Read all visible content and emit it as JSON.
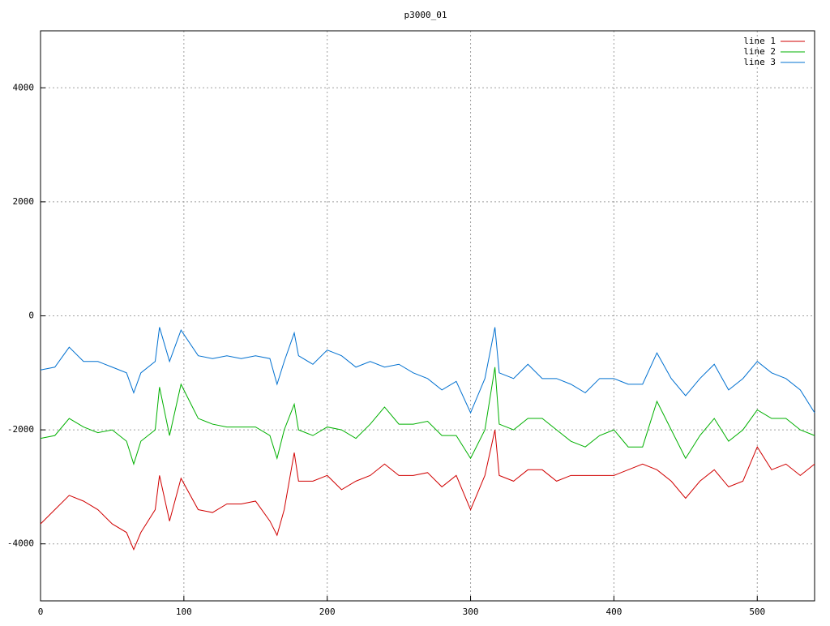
{
  "chart_data": {
    "type": "line",
    "title": "p3000_01",
    "x": [
      0,
      10,
      20,
      30,
      40,
      50,
      60,
      65,
      70,
      80,
      83,
      90,
      98,
      110,
      120,
      130,
      140,
      150,
      160,
      165,
      170,
      177,
      180,
      190,
      200,
      210,
      220,
      230,
      240,
      250,
      260,
      270,
      280,
      290,
      300,
      310,
      317,
      320,
      330,
      340,
      350,
      360,
      370,
      380,
      390,
      400,
      410,
      420,
      430,
      440,
      450,
      460,
      470,
      480,
      490,
      500,
      510,
      520,
      530,
      540
    ],
    "series": [
      {
        "name": "line 1",
        "color": "#d00000",
        "values": [
          -3650,
          -3400,
          -3150,
          -3250,
          -3400,
          -3650,
          -3800,
          -4100,
          -3800,
          -3400,
          -2800,
          -3600,
          -2850,
          -3400,
          -3450,
          -3300,
          -3300,
          -3250,
          -3600,
          -3850,
          -3400,
          -2400,
          -2900,
          -2900,
          -2800,
          -3050,
          -2900,
          -2800,
          -2600,
          -2800,
          -2800,
          -2750,
          -3000,
          -2800,
          -3400,
          -2800,
          -2000,
          -2800,
          -2900,
          -2700,
          -2700,
          -2900,
          -2800,
          -2800,
          -2800,
          -2800,
          -2700,
          -2600,
          -2700,
          -2900,
          -3200,
          -2900,
          -2700,
          -3000,
          -2900,
          -2300,
          -2700,
          -2600,
          -2800,
          -2600
        ]
      },
      {
        "name": "line 2",
        "color": "#00b000",
        "values": [
          -2150,
          -2100,
          -1800,
          -1950,
          -2050,
          -2000,
          -2200,
          -2600,
          -2200,
          -2000,
          -1250,
          -2100,
          -1200,
          -1800,
          -1900,
          -1950,
          -1950,
          -1950,
          -2100,
          -2500,
          -2000,
          -1550,
          -2000,
          -2100,
          -1950,
          -2000,
          -2150,
          -1900,
          -1600,
          -1900,
          -1900,
          -1850,
          -2100,
          -2100,
          -2500,
          -2000,
          -900,
          -1900,
          -2000,
          -1800,
          -1800,
          -2000,
          -2200,
          -2300,
          -2100,
          -2000,
          -2300,
          -2300,
          -1500,
          -2000,
          -2500,
          -2100,
          -1800,
          -2200,
          -2000,
          -1650,
          -1800,
          -1800,
          -2000,
          -2100
        ]
      },
      {
        "name": "line 3",
        "color": "#0070d0",
        "values": [
          -950,
          -900,
          -550,
          -800,
          -800,
          -900,
          -1000,
          -1350,
          -1000,
          -800,
          -200,
          -800,
          -250,
          -700,
          -750,
          -700,
          -750,
          -700,
          -750,
          -1200,
          -800,
          -300,
          -700,
          -850,
          -600,
          -700,
          -900,
          -800,
          -900,
          -850,
          -1000,
          -1100,
          -1300,
          -1150,
          -1700,
          -1100,
          -200,
          -1000,
          -1100,
          -850,
          -1100,
          -1100,
          -1200,
          -1350,
          -1100,
          -1100,
          -1200,
          -1200,
          -650,
          -1100,
          -1400,
          -1100,
          -850,
          -1300,
          -1100,
          -800,
          -1000,
          -1100,
          -1300,
          -1700
        ]
      }
    ],
    "xlim": [
      0,
      540
    ],
    "xticks": [
      0,
      100,
      200,
      300,
      400,
      500
    ],
    "ylim": [
      -5000,
      5000
    ],
    "yticks": [
      -4000,
      -2000,
      0,
      2000,
      4000
    ],
    "grid": true,
    "legend": "top-right"
  }
}
